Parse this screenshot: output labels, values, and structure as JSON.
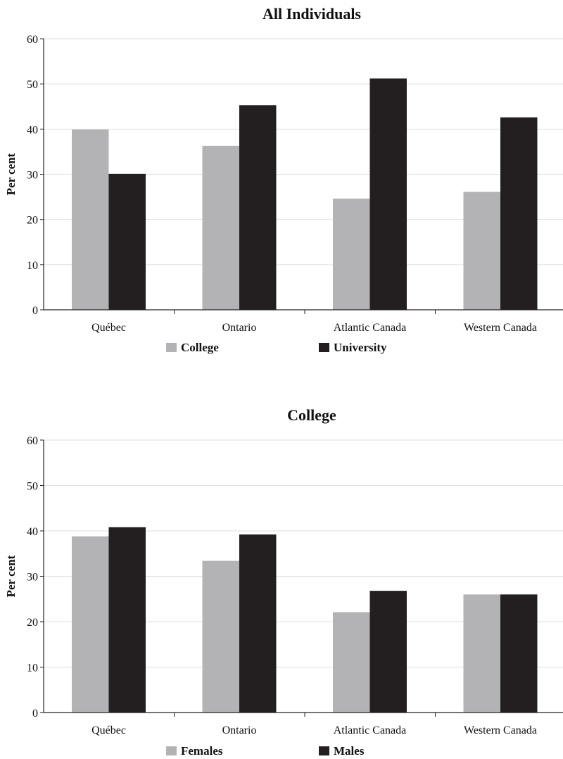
{
  "chart_data": [
    {
      "type": "bar",
      "title": "All Individuals",
      "ylabel": "Per cent",
      "xlabel": "",
      "ylim": [
        0,
        60
      ],
      "yticks": [
        0,
        10,
        20,
        30,
        40,
        50,
        60
      ],
      "grid": true,
      "legend_position": "bottom",
      "categories": [
        "Québec",
        "Ontario",
        "Atlantic Canada",
        "Western Canada"
      ],
      "series": [
        {
          "name": "College",
          "color": "#b3b3b5",
          "values": [
            39.9,
            36.3,
            24.6,
            26.1
          ]
        },
        {
          "name": "University",
          "color": "#231f20",
          "values": [
            30.1,
            45.3,
            51.2,
            42.6
          ]
        }
      ]
    },
    {
      "type": "bar",
      "title": "College",
      "ylabel": "Per cent",
      "xlabel": "",
      "ylim": [
        0,
        60
      ],
      "yticks": [
        0,
        10,
        20,
        30,
        40,
        50,
        60
      ],
      "grid": true,
      "legend_position": "bottom",
      "categories": [
        "Québec",
        "Ontario",
        "Atlantic Canada",
        "Western Canada"
      ],
      "series": [
        {
          "name": "Females",
          "color": "#b3b3b5",
          "values": [
            38.8,
            33.4,
            22.1,
            26.0
          ]
        },
        {
          "name": "Males",
          "color": "#231f20",
          "values": [
            40.8,
            39.2,
            26.8,
            26.0
          ]
        }
      ]
    }
  ]
}
